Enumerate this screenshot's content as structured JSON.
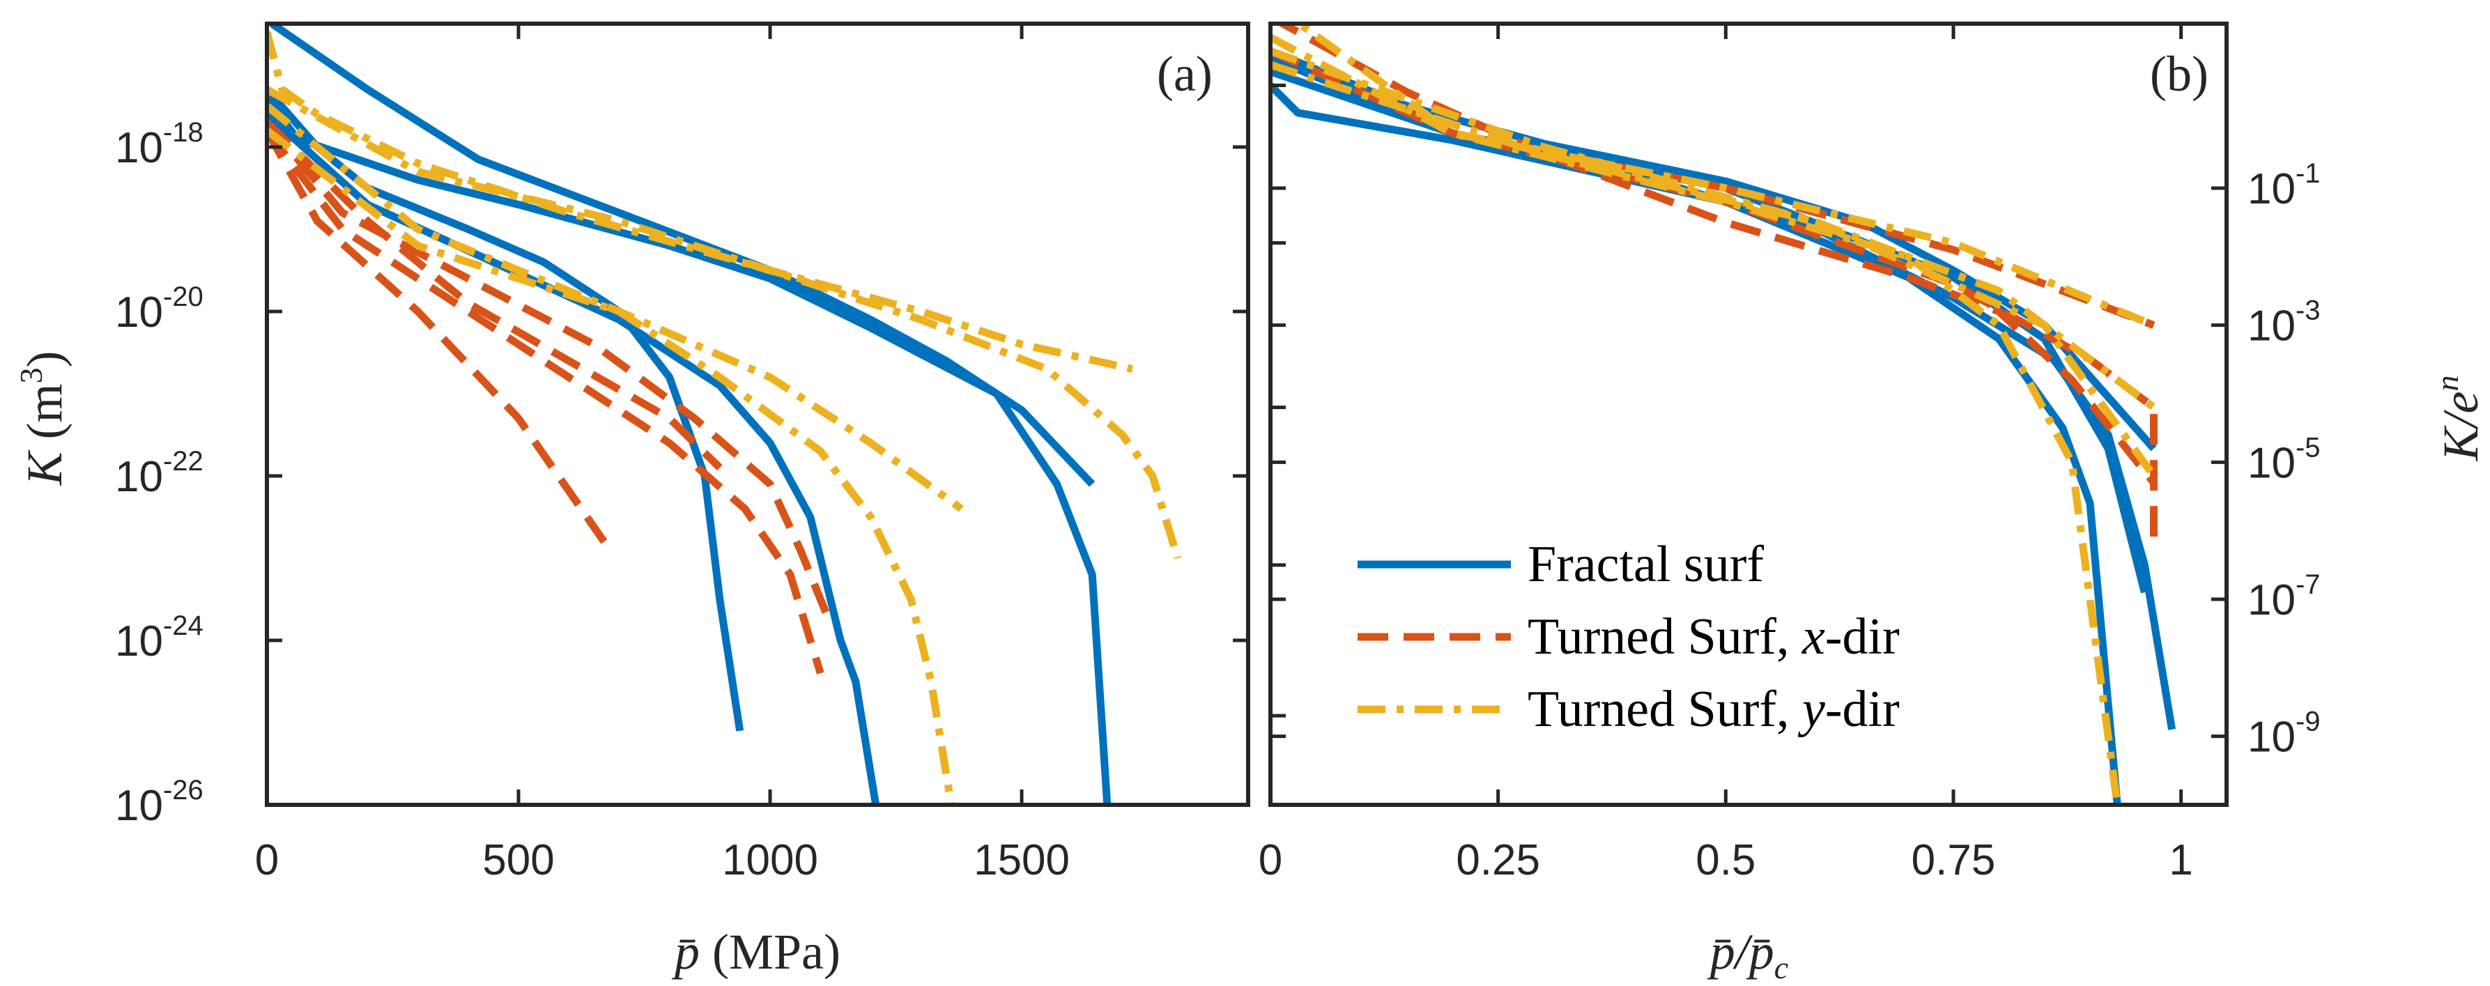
{
  "chart_data": [
    {
      "type": "line",
      "panel_label": "(a)",
      "xlabel": "p̄ (MPa)",
      "ylabel": "K (m3)",
      "yscale": "log",
      "xlim": [
        0,
        1950
      ],
      "ylim_log10": [
        -26,
        -16.5
      ],
      "xticks": [
        0,
        500,
        1000,
        1500
      ],
      "xtick_labels": [
        "0",
        "500",
        "1000",
        "1500"
      ],
      "yticks_log10": [
        -18,
        -20,
        -22,
        -24,
        -26
      ],
      "ytick_labels": [
        "-18",
        "-20",
        "-22",
        "-24",
        "-26"
      ],
      "ytick_base": "10",
      "grid": false,
      "series": [
        {
          "name": "Fractal surf",
          "style": "solid",
          "points": [
            [
              10,
              -16.5
            ],
            [
              200,
              -17.3
            ],
            [
              420,
              -18.15
            ],
            [
              700,
              -18.8
            ],
            [
              1000,
              -19.5
            ],
            [
              1200,
              -20.1
            ],
            [
              1350,
              -20.6
            ],
            [
              1500,
              -21.2
            ],
            [
              1640,
              -22.1
            ]
          ]
        },
        {
          "name": "Fractal surf",
          "style": "solid",
          "points": [
            [
              0,
              -17.4
            ],
            [
              60,
              -17.9
            ],
            [
              300,
              -18.4
            ],
            [
              500,
              -18.7
            ],
            [
              800,
              -19.2
            ],
            [
              1000,
              -19.6
            ],
            [
              1200,
              -20.2
            ],
            [
              1450,
              -21.0
            ],
            [
              1570,
              -22.1
            ],
            [
              1640,
              -23.2
            ],
            [
              1670,
              -26
            ]
          ]
        },
        {
          "name": "Fractal surf",
          "style": "solid",
          "points": [
            [
              0,
              -17.3
            ],
            [
              100,
              -18.0
            ],
            [
              200,
              -18.5
            ],
            [
              400,
              -19.0
            ],
            [
              550,
              -19.4
            ],
            [
              700,
              -20.0
            ],
            [
              800,
              -20.8
            ],
            [
              870,
              -22.0
            ],
            [
              900,
              -23.5
            ],
            [
              940,
              -25.1
            ]
          ]
        },
        {
          "name": "Fractal surf",
          "style": "solid",
          "points": [
            [
              0,
              -17.6
            ],
            [
              200,
              -18.7
            ],
            [
              450,
              -19.4
            ],
            [
              700,
              -20.1
            ],
            [
              900,
              -20.9
            ],
            [
              1000,
              -21.6
            ],
            [
              1080,
              -22.5
            ],
            [
              1140,
              -24.0
            ],
            [
              1170,
              -24.5
            ],
            [
              1210,
              -26
            ]
          ]
        },
        {
          "name": "Turned Surf, x-dir",
          "style": "dashed",
          "points": [
            [
              0,
              -17.8
            ],
            [
              100,
              -18.9
            ],
            [
              300,
              -20.0
            ],
            [
              500,
              -21.3
            ],
            [
              670,
              -22.8
            ]
          ]
        },
        {
          "name": "Turned Surf, x-dir",
          "style": "dashed",
          "points": [
            [
              0,
              -17.8
            ],
            [
              150,
              -19.0
            ],
            [
              400,
              -20.0
            ],
            [
              600,
              -20.8
            ],
            [
              800,
              -21.6
            ],
            [
              950,
              -22.4
            ],
            [
              1040,
              -23.2
            ],
            [
              1100,
              -24.4
            ]
          ]
        },
        {
          "name": "Turned Surf, x-dir",
          "style": "dashed",
          "points": [
            [
              0,
              -17.7
            ],
            [
              150,
              -18.8
            ],
            [
              400,
              -19.6
            ],
            [
              650,
              -20.4
            ],
            [
              850,
              -21.3
            ],
            [
              1000,
              -22.1
            ],
            [
              1060,
              -22.9
            ],
            [
              1120,
              -23.8
            ]
          ]
        },
        {
          "name": "Turned Surf, x-dir",
          "style": "dashed",
          "points": [
            [
              0,
              -17.7
            ],
            [
              200,
              -18.9
            ],
            [
              400,
              -19.9
            ],
            [
              600,
              -20.6
            ],
            [
              800,
              -21.3
            ],
            [
              900,
              -21.9
            ]
          ]
        },
        {
          "name": "Turned Surf, y-dir",
          "style": "dashdot",
          "points": [
            [
              0,
              -16.6
            ],
            [
              30,
              -17.3
            ],
            [
              100,
              -17.6
            ],
            [
              300,
              -18.2
            ],
            [
              600,
              -18.8
            ],
            [
              1000,
              -19.5
            ],
            [
              1300,
              -20.0
            ],
            [
              1500,
              -20.4
            ],
            [
              1720,
              -20.7
            ]
          ]
        },
        {
          "name": "Turned Surf, y-dir",
          "style": "dashdot",
          "points": [
            [
              0,
              -17.3
            ],
            [
              300,
              -18.3
            ],
            [
              700,
              -18.9
            ],
            [
              1000,
              -19.5
            ],
            [
              1300,
              -20.1
            ],
            [
              1550,
              -20.7
            ],
            [
              1700,
              -21.5
            ],
            [
              1760,
              -22.0
            ],
            [
              1810,
              -23.0
            ]
          ]
        },
        {
          "name": "Turned Surf, y-dir",
          "style": "dashdot",
          "points": [
            [
              0,
              -17.5
            ],
            [
              300,
              -19.0
            ],
            [
              700,
              -20.0
            ],
            [
              1000,
              -20.8
            ],
            [
              1200,
              -21.6
            ],
            [
              1380,
              -22.4
            ]
          ]
        },
        {
          "name": "Turned Surf, y-dir",
          "style": "dashdot",
          "points": [
            [
              0,
              -17.8
            ],
            [
              300,
              -19.2
            ],
            [
              700,
              -20.0
            ],
            [
              900,
              -20.8
            ],
            [
              1100,
              -21.7
            ],
            [
              1200,
              -22.5
            ],
            [
              1280,
              -23.5
            ],
            [
              1320,
              -24.5
            ],
            [
              1360,
              -26
            ]
          ]
        }
      ]
    },
    {
      "type": "line",
      "panel_label": "(b)",
      "xlabel": "p̄/p̄c",
      "ylabel": "K/e^n",
      "yscale": "log",
      "xlim": [
        0,
        1.05
      ],
      "ylim_log10": [
        -10,
        1.4
      ],
      "xticks": [
        0,
        0.25,
        0.5,
        0.75,
        1
      ],
      "xtick_labels": [
        "0",
        "0.25",
        "0.5",
        "0.75",
        "1"
      ],
      "yticks_log10": [
        -1,
        -3,
        -5,
        -7,
        -9
      ],
      "ytick_labels": [
        "-1",
        "-3",
        "-5",
        "-7",
        "-9"
      ],
      "ytick_base": "10",
      "grid": false,
      "legend": {
        "placement": "lower-left",
        "entries": [
          {
            "label": "Fractal surf",
            "style": "solid",
            "color": "#0072BD"
          },
          {
            "label_main": "Turned Surf, ",
            "label_var": "x",
            "label_tail": "-dir",
            "style": "dashed",
            "color": "#D95319"
          },
          {
            "label_main": "Turned Surf, ",
            "label_var": "y",
            "label_tail": "-dir",
            "style": "dashdot",
            "color": "#EDB120"
          }
        ]
      },
      "series": [
        {
          "name": "Fractal surf",
          "style": "solid",
          "points": [
            [
              0,
              1.0
            ],
            [
              0.15,
              0.2
            ],
            [
              0.3,
              -0.35
            ],
            [
              0.5,
              -0.9
            ],
            [
              0.65,
              -1.5
            ],
            [
              0.75,
              -2.2
            ],
            [
              0.85,
              -3.0
            ],
            [
              0.97,
              -4.8
            ]
          ]
        },
        {
          "name": "Fractal surf",
          "style": "solid",
          "points": [
            [
              0,
              0.7
            ],
            [
              0.2,
              -0.2
            ],
            [
              0.4,
              -0.8
            ],
            [
              0.6,
              -1.6
            ],
            [
              0.75,
              -2.6
            ],
            [
              0.86,
              -3.5
            ],
            [
              0.92,
              -4.6
            ],
            [
              0.96,
              -6.5
            ],
            [
              0.99,
              -8.9
            ]
          ]
        },
        {
          "name": "Fractal surf",
          "style": "solid",
          "points": [
            [
              0,
              0.5
            ],
            [
              0.03,
              0.1
            ],
            [
              0.2,
              -0.3
            ],
            [
              0.5,
              -1.2
            ],
            [
              0.7,
              -2.3
            ],
            [
              0.8,
              -3.2
            ],
            [
              0.87,
              -4.5
            ],
            [
              0.9,
              -5.6
            ],
            [
              0.93,
              -10
            ]
          ]
        },
        {
          "name": "Fractal surf",
          "style": "solid",
          "points": [
            [
              0,
              0.9
            ],
            [
              0.2,
              -0.2
            ],
            [
              0.5,
              -1.0
            ],
            [
              0.75,
              -2.3
            ],
            [
              0.85,
              -3.2
            ],
            [
              0.92,
              -4.8
            ],
            [
              0.96,
              -6.9
            ]
          ]
        },
        {
          "name": "Turned Surf, x-dir",
          "style": "dashed",
          "points": [
            [
              0,
              1.5
            ],
            [
              0.15,
              0.4
            ],
            [
              0.3,
              -0.5
            ],
            [
              0.5,
              -1.5
            ],
            [
              0.7,
              -2.3
            ],
            [
              0.8,
              -2.8
            ],
            [
              0.88,
              -3.8
            ],
            [
              0.97,
              -5.3
            ]
          ]
        },
        {
          "name": "Turned Surf, x-dir",
          "style": "dashed",
          "points": [
            [
              0,
              1.0
            ],
            [
              0.2,
              -0.2
            ],
            [
              0.5,
              -1.0
            ],
            [
              0.75,
              -1.9
            ],
            [
              0.97,
              -3.0
            ]
          ]
        },
        {
          "name": "Turned Surf, x-dir",
          "style": "dashed",
          "points": [
            [
              0,
              1.0
            ],
            [
              0.2,
              -0.2
            ],
            [
              0.5,
              -1.2
            ],
            [
              0.75,
              -2.4
            ],
            [
              0.9,
              -3.5
            ],
            [
              0.97,
              -4.2
            ],
            [
              0.97,
              -6.3
            ]
          ]
        },
        {
          "name": "Turned Surf, y-dir",
          "style": "dashdot",
          "points": [
            [
              0,
              1.7
            ],
            [
              0.2,
              -0.2
            ],
            [
              0.5,
              -1.0
            ],
            [
              0.75,
              -1.8
            ],
            [
              0.97,
              -3.0
            ]
          ]
        },
        {
          "name": "Turned Surf, y-dir",
          "style": "dashdot",
          "points": [
            [
              0,
              1.2
            ],
            [
              0.2,
              -0.2
            ],
            [
              0.5,
              -1.2
            ],
            [
              0.7,
              -2.0
            ],
            [
              0.8,
              -3.0
            ],
            [
              0.88,
              -5.0
            ],
            [
              0.93,
              -10
            ]
          ]
        },
        {
          "name": "Turned Surf, y-dir",
          "style": "dashdot",
          "points": [
            [
              0,
              1.0
            ],
            [
              0.3,
              -0.4
            ],
            [
              0.6,
              -1.5
            ],
            [
              0.8,
              -2.5
            ],
            [
              0.97,
              -4.2
            ]
          ]
        },
        {
          "name": "Turned Surf, y-dir",
          "style": "dashdot",
          "points": [
            [
              0,
              0.8
            ],
            [
              0.3,
              -0.5
            ],
            [
              0.6,
              -1.5
            ],
            [
              0.85,
              -3.0
            ],
            [
              0.97,
              -5.2
            ]
          ]
        }
      ]
    }
  ],
  "colors": {
    "solid": "#0072BD",
    "dashed": "#D95319",
    "dashdot": "#EDB120"
  },
  "labels": {
    "a_ylabel_var": "K",
    "a_ylabel_unit": "(m",
    "a_ylabel_exp": "3",
    "a_ylabel_close": ")",
    "a_xlabel_var": "p̄",
    "a_xlabel_unit": "(MPa)",
    "b_xlabel": "p̄/p̄",
    "b_xlabel_sub": "c",
    "b_ylabel": "K/e",
    "b_ylabel_exp": "n"
  }
}
